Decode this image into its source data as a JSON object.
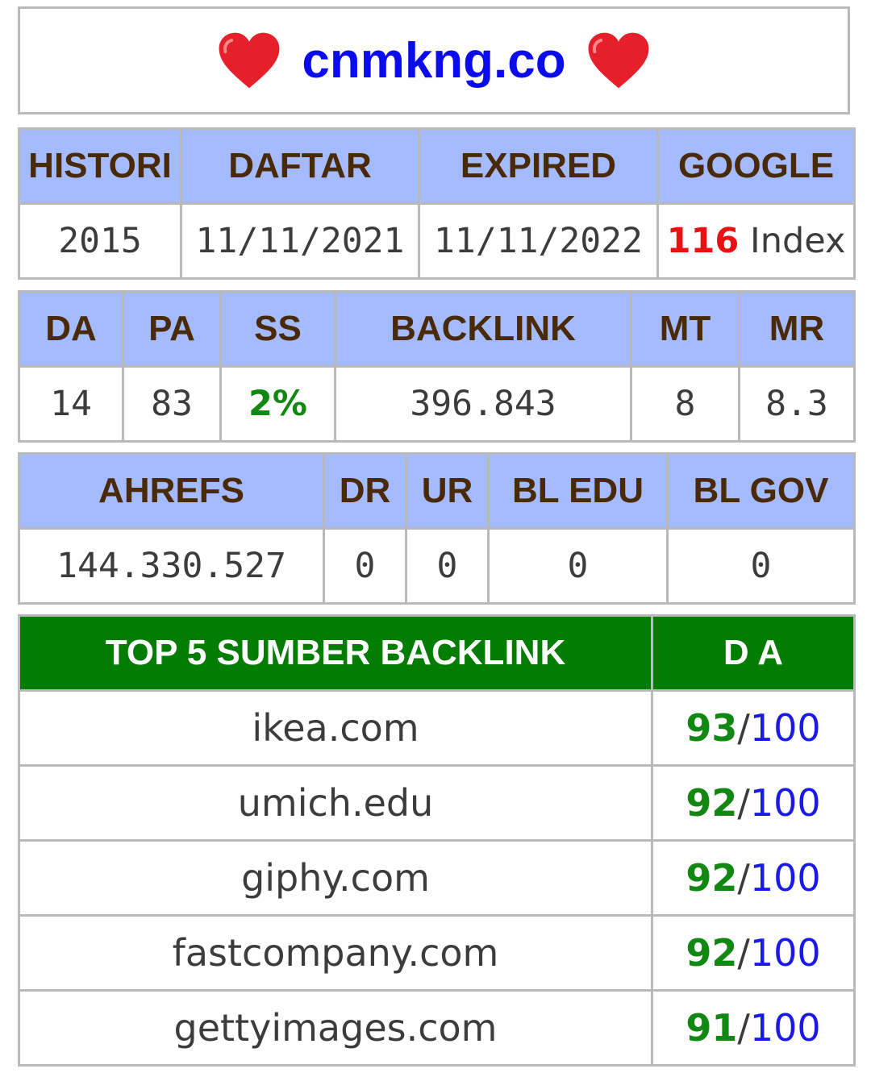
{
  "title": {
    "domain": "cnmkng.co",
    "left_icon": "heart-icon",
    "right_icon": "heart-icon",
    "color": "#0b0bf0"
  },
  "colors": {
    "header_bg": "#a4bbff",
    "header_text": "#4a2a06",
    "green_header_bg": "#027d02",
    "score_green": "#118811",
    "score_blue": "#1a1ae8",
    "index_red": "#e81212"
  },
  "domain_table": {
    "headers": [
      "HISTORI",
      "DAFTAR",
      "EXPIRED",
      "GOOGLE"
    ],
    "histori": "2015",
    "daftar": "11/11/2021",
    "expired": "11/11/2022",
    "google_count": "116",
    "google_suffix": " Index"
  },
  "moz_table": {
    "headers": [
      "DA",
      "PA",
      "SS",
      "BACKLINK",
      "MT",
      "MR"
    ],
    "values": [
      "14",
      "83",
      "2%",
      "396.843",
      "8",
      "8.3"
    ]
  },
  "ahrefs_table": {
    "headers": [
      "AHREFS",
      "DR",
      "UR",
      "BL EDU",
      "BL GOV"
    ],
    "values": [
      "144.330.527",
      "0",
      "0",
      "0",
      "0"
    ]
  },
  "backlinks": {
    "header_source": "TOP 5 SUMBER BACKLINK",
    "header_da": "D A",
    "separator": "/",
    "rows": [
      {
        "site": "ikea.com",
        "da": "93",
        "max": "100"
      },
      {
        "site": "umich.edu",
        "da": "92",
        "max": "100"
      },
      {
        "site": "giphy.com",
        "da": "92",
        "max": "100"
      },
      {
        "site": "fastcompany.com",
        "da": "92",
        "max": "100"
      },
      {
        "site": "gettyimages.com",
        "da": "91",
        "max": "100"
      }
    ]
  }
}
